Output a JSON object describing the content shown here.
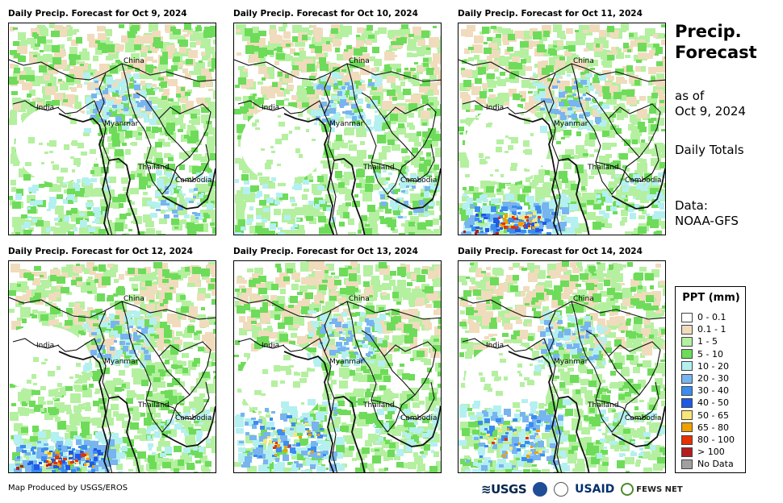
{
  "panels": [
    {
      "title": "Daily Precip. Forecast for Oct 9, 2024",
      "places": [
        "China",
        "India",
        "Myanmar",
        "Thailand",
        "Cambodia"
      ],
      "rain": "low"
    },
    {
      "title": "Daily Precip. Forecast for Oct 10, 2024",
      "places": [
        "China",
        "India",
        "Myanmar",
        "Thailand",
        "Cambodia"
      ],
      "rain": "low"
    },
    {
      "title": "Daily Precip. Forecast for Oct 11, 2024",
      "places": [
        "China",
        "India",
        "Myanmar",
        "Thailand",
        "Cambodia"
      ],
      "rain": "sw-heavy"
    },
    {
      "title": "Daily Precip. Forecast for Oct 12, 2024",
      "places": [
        "China",
        "India",
        "Myanmar",
        "Thailand",
        "Cambodia"
      ],
      "rain": "sw-heavy"
    },
    {
      "title": "Daily Precip. Forecast for Oct 13, 2024",
      "places": [
        "China",
        "India",
        "Myanmar",
        "Thailand",
        "Cambodia"
      ],
      "rain": "sw-mid"
    },
    {
      "title": "Daily Precip. Forecast for Oct 14, 2024",
      "places": [
        "China",
        "India",
        "Myanmar",
        "Thailand",
        "Cambodia"
      ],
      "rain": "sw-mid"
    }
  ],
  "side": {
    "title_line1": "Precip.",
    "title_line2": "Forecast",
    "asof_line1": "as of",
    "asof_line2": "Oct 9, 2024",
    "period": "Daily Totals",
    "source_line1": "Data:",
    "source_line2": "NOAA-GFS"
  },
  "legend": {
    "title": "PPT (mm)",
    "items": [
      {
        "label": "0 - 0.1",
        "color": "#ffffff"
      },
      {
        "label": "0.1 - 1",
        "color": "#f0dcbc"
      },
      {
        "label": "1 - 5",
        "color": "#b4f0a0"
      },
      {
        "label": "5 - 10",
        "color": "#6edc5a"
      },
      {
        "label": "10 - 20",
        "color": "#b4f0f0"
      },
      {
        "label": "20 - 30",
        "color": "#78b4f0"
      },
      {
        "label": "30 - 40",
        "color": "#3c8cf0"
      },
      {
        "label": "40 - 50",
        "color": "#1e5ae6"
      },
      {
        "label": "50 - 65",
        "color": "#fae678"
      },
      {
        "label": "65 - 80",
        "color": "#f0a000"
      },
      {
        "label": "80 - 100",
        "color": "#e63200"
      },
      {
        "label": "> 100",
        "color": "#b41e1e"
      },
      {
        "label": "No Data",
        "color": "#a0a0a0"
      }
    ]
  },
  "footer": "Map Produced by USGS/EROS",
  "logos": {
    "usgs": "≋USGS",
    "usaid": "USAID",
    "fews": "FEWS NET"
  }
}
